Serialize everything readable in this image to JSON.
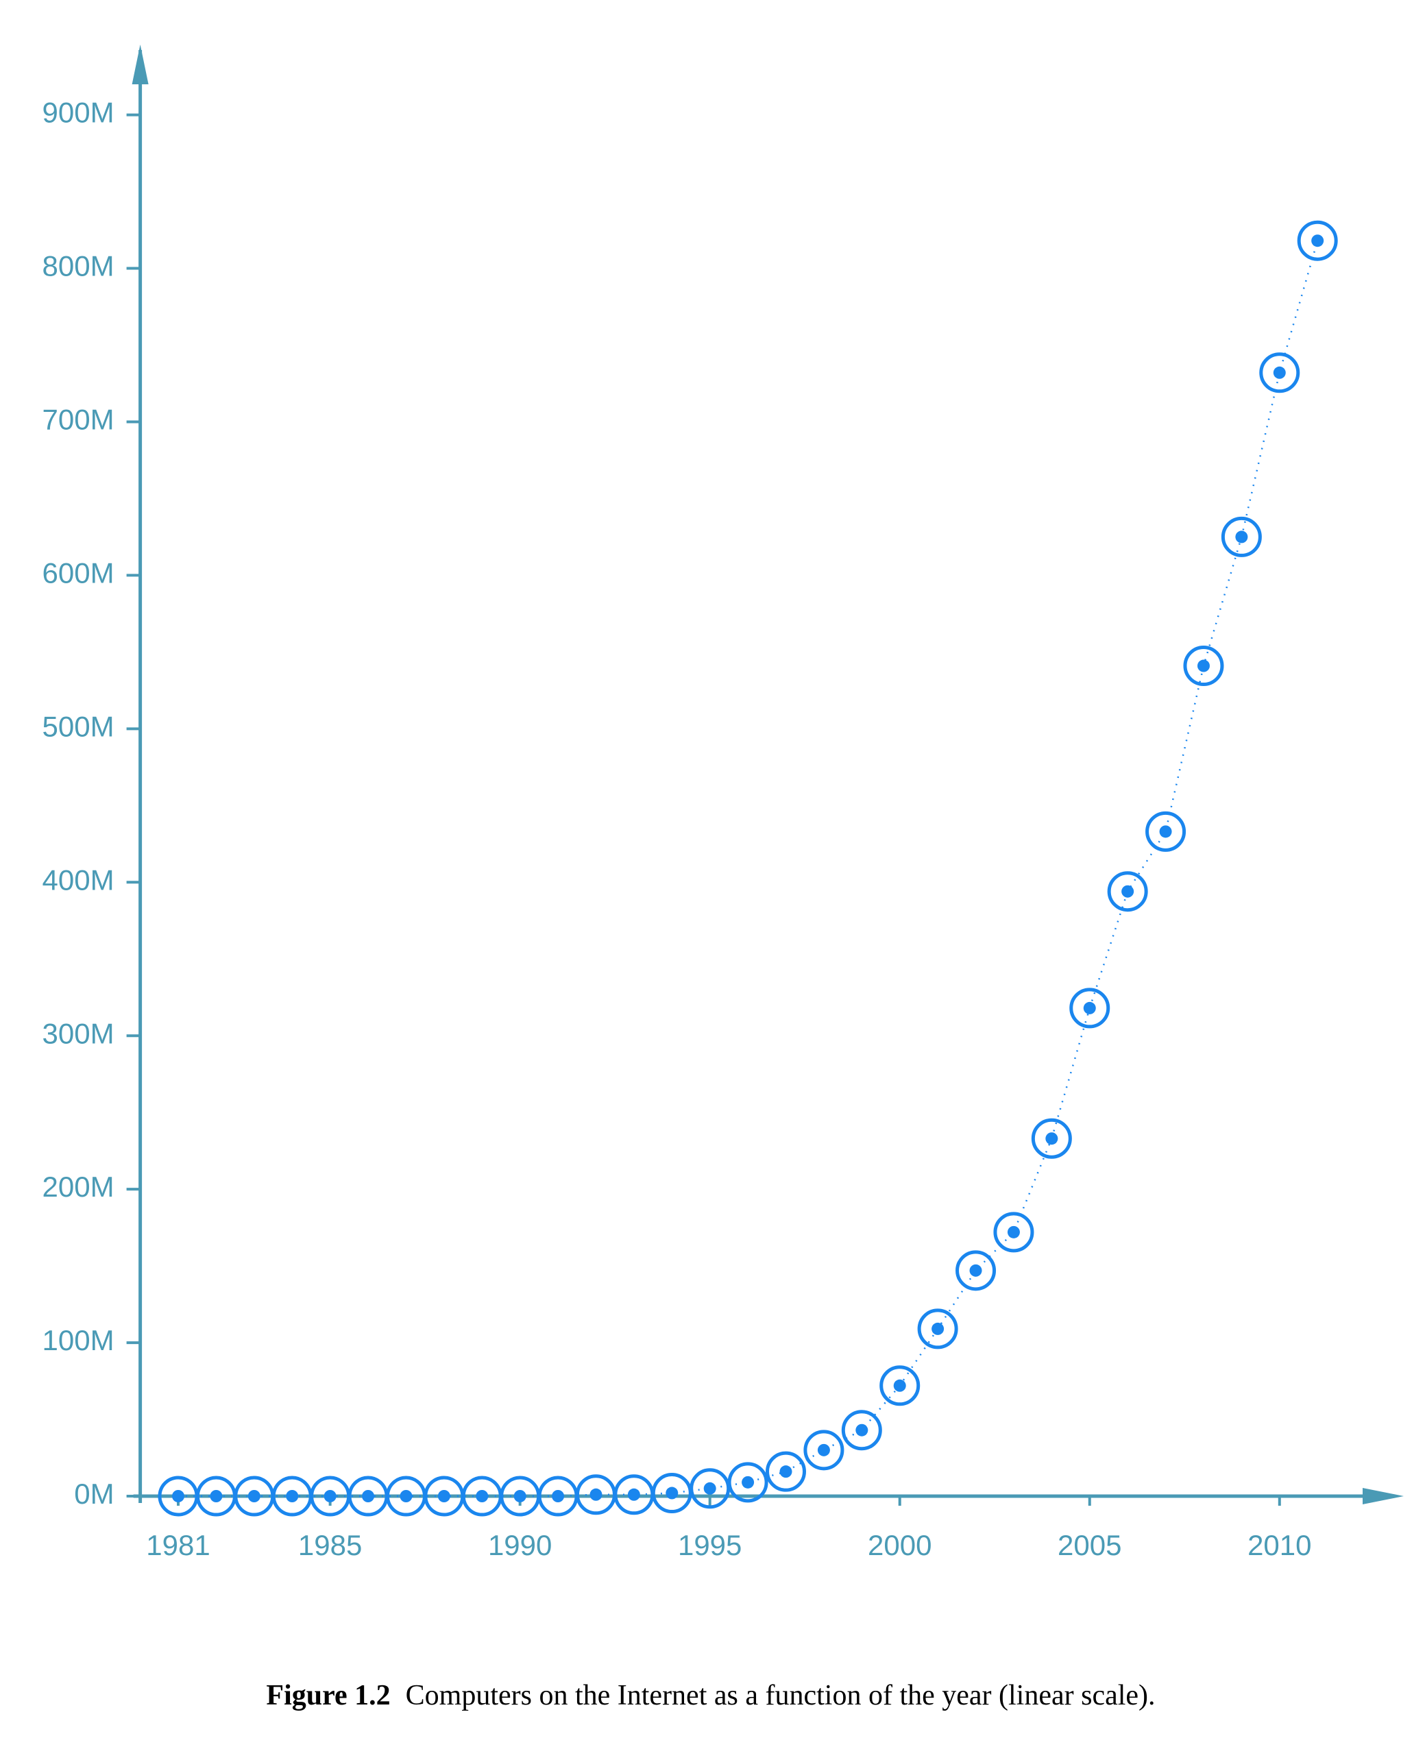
{
  "chart_data": {
    "type": "scatter",
    "caption_label": "Figure 1.2",
    "caption": "Computers on the Internet as a function of the year (linear scale).",
    "x": [
      1981,
      1982,
      1983,
      1984,
      1985,
      1986,
      1987,
      1988,
      1989,
      1990,
      1991,
      1992,
      1993,
      1994,
      1995,
      1996,
      1997,
      1998,
      1999,
      2000,
      2001,
      2002,
      2003,
      2004,
      2005,
      2006,
      2007,
      2008,
      2009,
      2010,
      2011
    ],
    "series": [
      {
        "name": "Computers",
        "color": "#1a86ee",
        "values": [
          0,
          0,
          0,
          0,
          0,
          0,
          0,
          0,
          0,
          0,
          0,
          1,
          1,
          2,
          5,
          9,
          16,
          30,
          43,
          72,
          109,
          147,
          172,
          233,
          318,
          394,
          433,
          541,
          625,
          732,
          818
        ]
      }
    ],
    "xlim": [
      1980,
      2013
    ],
    "xticks": [
      1981,
      1985,
      1990,
      1995,
      2000,
      2005,
      2010
    ],
    "ylim": [
      0,
      940
    ],
    "yticks": [
      {
        "value": 0,
        "label": "0M"
      },
      {
        "value": 100,
        "label": "100M"
      },
      {
        "value": 200,
        "label": "200M"
      },
      {
        "value": 300,
        "label": "300M"
      },
      {
        "value": 400,
        "label": "400M"
      },
      {
        "value": 500,
        "label": "500M"
      },
      {
        "value": 600,
        "label": "600M"
      },
      {
        "value": 700,
        "label": "700M"
      },
      {
        "value": 800,
        "label": "800M"
      },
      {
        "value": 900,
        "label": "900M"
      }
    ],
    "axis_color": "#4a9ab5",
    "connect_points": true
  }
}
